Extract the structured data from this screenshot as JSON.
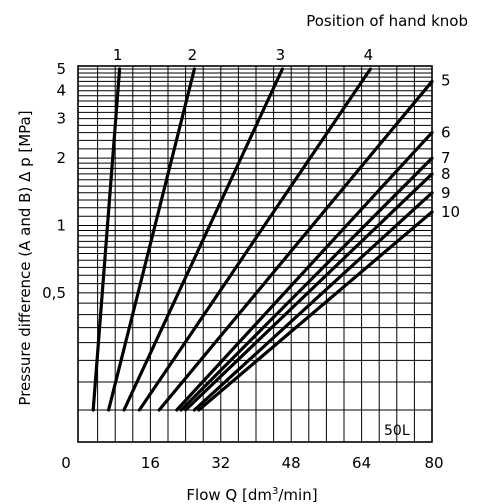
{
  "chart_data": {
    "type": "line",
    "title": "Position of hand knob",
    "xlabel_prefix": "Flow Q  [dm",
    "xlabel_sup": "3",
    "xlabel_suffix": "/min]",
    "ylabel": "Pressure difference (A and B)  Δ p [MPa]",
    "x_ticks": [
      "0",
      "16",
      "32",
      "48",
      "64",
      "80"
    ],
    "x_tick_values": [
      0,
      16,
      32,
      48,
      64,
      80
    ],
    "xlim": [
      0,
      80
    ],
    "y_scale": "log",
    "ylim": [
      0.1,
      5
    ],
    "y_tick_labels": [
      {
        "value": 5,
        "label": "5"
      },
      {
        "value": 4,
        "label": "4"
      },
      {
        "value": 3,
        "label": "3"
      },
      {
        "value": 2,
        "label": "2"
      },
      {
        "value": 1,
        "label": "1"
      },
      {
        "value": 0.5,
        "label": "0,5"
      }
    ],
    "annotation": "50L",
    "series": [
      {
        "name": "1",
        "points": [
          [
            3,
            0.15
          ],
          [
            9,
            5
          ]
        ]
      },
      {
        "name": "2",
        "points": [
          [
            6.5,
            0.15
          ],
          [
            26,
            5
          ]
        ]
      },
      {
        "name": "3",
        "points": [
          [
            10,
            0.15
          ],
          [
            46,
            5
          ]
        ]
      },
      {
        "name": "4",
        "points": [
          [
            13.5,
            0.15
          ],
          [
            66,
            5
          ]
        ]
      },
      {
        "name": "5",
        "points": [
          [
            18,
            0.15
          ],
          [
            80,
            4.4
          ]
        ]
      },
      {
        "name": "6",
        "points": [
          [
            22,
            0.15
          ],
          [
            80,
            2.6
          ]
        ]
      },
      {
        "name": "7",
        "points": [
          [
            23,
            0.15
          ],
          [
            80,
            2.0
          ]
        ]
      },
      {
        "name": "8",
        "points": [
          [
            24,
            0.15
          ],
          [
            80,
            1.7
          ]
        ]
      },
      {
        "name": "9",
        "points": [
          [
            26,
            0.15
          ],
          [
            80,
            1.4
          ]
        ]
      },
      {
        "name": "10",
        "points": [
          [
            27,
            0.15
          ],
          [
            80,
            1.15
          ]
        ]
      }
    ],
    "grid": true
  }
}
